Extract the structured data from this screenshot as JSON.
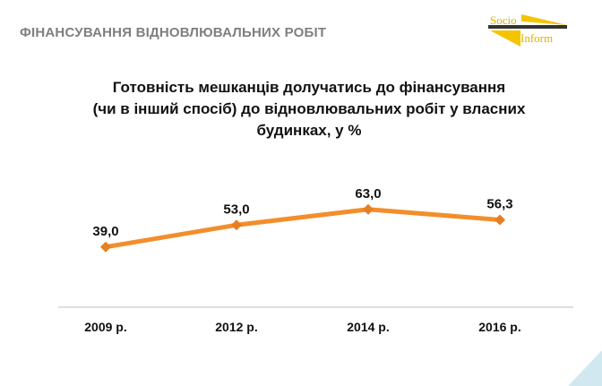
{
  "header": {
    "title": "ФІНАНСУВАННЯ ВІДНОВЛЮВАЛЬНИХ РОБІТ"
  },
  "logo": {
    "line1": "Socio",
    "line2": "Inform"
  },
  "chart_data": {
    "type": "line",
    "title": "Готовність мешканців долучатись до фінансування (чи в інший спосіб) до відновлювальних робіт у власних будинках, у %",
    "title_lines": [
      "Готовність мешканців долучатись до фінансування",
      "(чи в інший спосіб) до відновлювальних робіт у власних",
      "будинках, у %"
    ],
    "categories": [
      "2009 р.",
      "2012 р.",
      "2014 р.",
      "2016 р."
    ],
    "values": [
      39.0,
      53.0,
      63.0,
      56.3
    ],
    "labels": [
      "39,0",
      "53,0",
      "63,0",
      "56,3"
    ],
    "ylim": [
      0,
      70
    ],
    "color": "#f28e2b",
    "grid": false
  }
}
